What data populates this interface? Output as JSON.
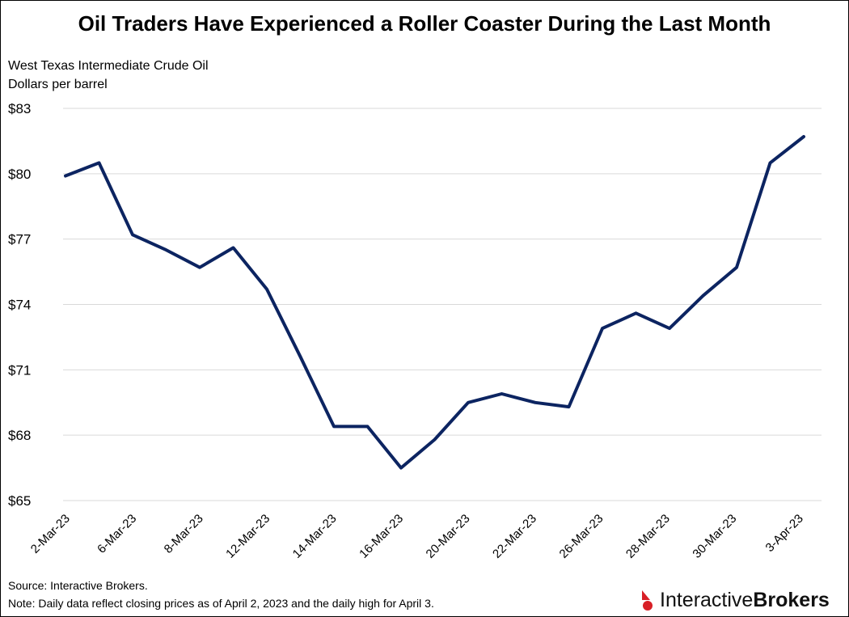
{
  "title": "Oil Traders Have Experienced a Roller Coaster During the Last Month",
  "subtitle_line1": "West Texas Intermediate Crude Oil",
  "subtitle_line2": "Dollars per barrel",
  "source": "Source:  Interactive Brokers.",
  "note": "Note: Daily data reflect closing prices as of April 2, 2023 and the daily high for April 3.",
  "logo": {
    "part1": "Interactive",
    "part2": "Brokers",
    "icon": "interactive-brokers-logo-icon"
  },
  "colors": {
    "line": "#0c2461",
    "grid": "#d9d9d9",
    "logo_red": "#d81f26"
  },
  "chart_data": {
    "type": "line",
    "title": "Oil Traders Have Experienced a Roller Coaster During the Last Month",
    "xlabel": "",
    "ylabel": "Dollars per barrel",
    "x": [
      "2-Mar-23",
      "3-Mar-23",
      "6-Mar-23",
      "7-Mar-23",
      "8-Mar-23",
      "9-Mar-23",
      "10-Mar-23",
      "13-Mar-23",
      "14-Mar-23",
      "15-Mar-23",
      "16-Mar-23",
      "17-Mar-23",
      "20-Mar-23",
      "21-Mar-23",
      "22-Mar-23",
      "23-Mar-23",
      "24-Mar-23",
      "27-Mar-23",
      "28-Mar-23",
      "29-Mar-23",
      "30-Mar-23",
      "31-Mar-23",
      "3-Apr-23"
    ],
    "x_tick_labels": [
      "2-Mar-23",
      "6-Mar-23",
      "8-Mar-23",
      "12-Mar-23",
      "14-Mar-23",
      "16-Mar-23",
      "20-Mar-23",
      "22-Mar-23",
      "26-Mar-23",
      "28-Mar-23",
      "30-Mar-23",
      "3-Apr-23"
    ],
    "series": [
      {
        "values": [
          79.9,
          80.5,
          77.2,
          76.5,
          75.7,
          76.6,
          74.7,
          71.6,
          68.4,
          68.4,
          66.5,
          67.8,
          69.5,
          69.9,
          69.5,
          69.3,
          72.9,
          73.6,
          72.9,
          74.4,
          75.7,
          80.5,
          81.7
        ]
      }
    ],
    "ylim": [
      65,
      83
    ],
    "y_ticks": [
      65,
      68,
      71,
      74,
      77,
      80,
      83
    ],
    "y_tick_labels": [
      "$65",
      "$68",
      "$71",
      "$74",
      "$77",
      "$80",
      "$83"
    ],
    "grid": true,
    "legend": "none"
  }
}
